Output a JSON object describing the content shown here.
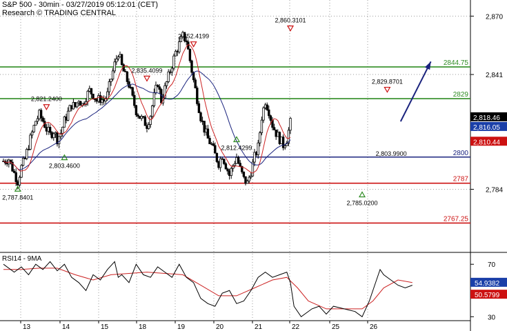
{
  "header": {
    "title": "S&P 500 - 30min - 03/27/2019 05:12:01 (CET)",
    "subtitle": "Research © TRADING CENTRAL"
  },
  "colors": {
    "up_candle": "#ffffff",
    "down_candle": "#000000",
    "green_line": "#2e8b22",
    "blue_line": "#1a237e",
    "red_line": "#cc1111",
    "ma_fast": "#cc2222",
    "ma_slow": "#1a237e",
    "arrow": "#1a237e"
  },
  "chart_data": [
    {
      "type": "candlestick",
      "title": "S&P 500 - 30min",
      "ylim": [
        2753,
        2878
      ],
      "y_ticks": [
        "2,870",
        "2,841",
        "2,784"
      ],
      "x_tick_labels": [
        "13",
        "14",
        "15",
        "18",
        "19",
        "20",
        "21",
        "22",
        "25",
        "26"
      ],
      "close_path": [
        [
          0,
          2798
        ],
        [
          3,
          2799
        ],
        [
          6,
          2792
        ],
        [
          8,
          2788
        ],
        [
          10,
          2795
        ],
        [
          12,
          2799
        ],
        [
          14,
          2806
        ],
        [
          16,
          2812
        ],
        [
          18,
          2818
        ],
        [
          20,
          2821
        ],
        [
          22,
          2818
        ],
        [
          24,
          2814
        ],
        [
          26,
          2811
        ],
        [
          28,
          2813
        ],
        [
          30,
          2809
        ],
        [
          32,
          2812
        ],
        [
          34,
          2818
        ],
        [
          36,
          2822
        ],
        [
          38,
          2826
        ],
        [
          40,
          2825
        ],
        [
          42,
          2829
        ],
        [
          44,
          2826
        ],
        [
          46,
          2830
        ],
        [
          48,
          2833
        ],
        [
          50,
          2831
        ],
        [
          52,
          2828
        ],
        [
          54,
          2829
        ],
        [
          56,
          2828
        ],
        [
          58,
          2831
        ],
        [
          60,
          2839
        ],
        [
          62,
          2846
        ],
        [
          64,
          2852
        ],
        [
          66,
          2845
        ],
        [
          68,
          2840
        ],
        [
          70,
          2836
        ],
        [
          72,
          2829
        ],
        [
          74,
          2823
        ],
        [
          76,
          2820
        ],
        [
          78,
          2818
        ],
        [
          80,
          2816
        ],
        [
          82,
          2821
        ],
        [
          84,
          2830
        ],
        [
          86,
          2837
        ],
        [
          88,
          2828
        ],
        [
          90,
          2834
        ],
        [
          92,
          2840
        ],
        [
          94,
          2846
        ],
        [
          96,
          2852
        ],
        [
          98,
          2856
        ],
        [
          100,
          2860
        ],
        [
          102,
          2858
        ],
        [
          104,
          2848
        ],
        [
          106,
          2838
        ],
        [
          108,
          2829
        ],
        [
          110,
          2820
        ],
        [
          112,
          2814
        ],
        [
          114,
          2809
        ],
        [
          116,
          2806
        ],
        [
          118,
          2801
        ],
        [
          120,
          2797
        ],
        [
          122,
          2801
        ],
        [
          124,
          2796
        ],
        [
          126,
          2791
        ],
        [
          128,
          2796
        ],
        [
          130,
          2800
        ],
        [
          132,
          2794
        ],
        [
          134,
          2789
        ],
        [
          136,
          2787
        ],
        [
          138,
          2793
        ],
        [
          140,
          2800
        ],
        [
          142,
          2805
        ],
        [
          144,
          2820
        ],
        [
          146,
          2828
        ],
        [
          148,
          2823
        ],
        [
          150,
          2816
        ],
        [
          152,
          2812
        ],
        [
          154,
          2809
        ],
        [
          156,
          2806
        ],
        [
          158,
          2809
        ],
        [
          160,
          2817
        ]
      ],
      "ma_fast_label": "",
      "ma_slow_label": "",
      "levels": [
        {
          "label": "2844.75",
          "value": 2844.75,
          "color": "green"
        },
        {
          "label": "2829",
          "value": 2829,
          "color": "green"
        },
        {
          "label": "2800",
          "value": 2800,
          "color": "blue"
        },
        {
          "label": "2787",
          "value": 2787,
          "color": "red"
        },
        {
          "label": "2767.25",
          "value": 2767.25,
          "color": "red"
        }
      ],
      "price_tags": [
        {
          "label": "2,818.46",
          "value": 2818.46,
          "style": "black"
        },
        {
          "label": "2,816.05",
          "value": 2816.05,
          "style": "blue"
        },
        {
          "label": "2,810.44",
          "value": 2810.44,
          "style": "red"
        }
      ],
      "annotations": [
        {
          "label": "2,787.8401",
          "x": 8,
          "value": 2787.8401,
          "marker": "up"
        },
        {
          "label": "2,821.2400",
          "x": 24,
          "value": 2821.24,
          "marker": "down"
        },
        {
          "label": "2,803.4600",
          "x": 34,
          "value": 2803.46,
          "marker": "up"
        },
        {
          "label": "2,835.4099",
          "x": 80,
          "value": 2835.4099,
          "marker": "down"
        },
        {
          "label": "2,852.4199",
          "x": 106,
          "value": 2852.4199,
          "marker": "down"
        },
        {
          "label": "2,812.4299",
          "x": 130,
          "value": 2812.4299,
          "marker": "up"
        },
        {
          "label": "2,860.3101",
          "x": 160,
          "value": 2860.3101,
          "marker": "down"
        },
        {
          "label": "2,785.0200",
          "x": 200,
          "value": 2785.02,
          "marker": "up"
        },
        {
          "label": "2,803.9900",
          "x": 206,
          "value": 2803.99,
          "marker": "none"
        },
        {
          "label": "2,829.8701",
          "x": 214,
          "value": 2829.8701,
          "marker": "down"
        }
      ],
      "forecast_arrow": {
        "from": {
          "x": 233,
          "value": 2817
        },
        "to": {
          "x": 246,
          "value": 2844
        }
      }
    },
    {
      "type": "line",
      "title": "RSI14 - 9MA",
      "ylim": [
        27,
        78
      ],
      "y_ticks": [
        "70",
        "30"
      ],
      "rsi_path": [
        [
          0,
          70
        ],
        [
          6,
          64
        ],
        [
          10,
          68
        ],
        [
          14,
          62
        ],
        [
          18,
          70
        ],
        [
          22,
          66
        ],
        [
          26,
          72
        ],
        [
          30,
          65
        ],
        [
          34,
          70
        ],
        [
          38,
          60
        ],
        [
          42,
          56
        ],
        [
          46,
          50
        ],
        [
          50,
          62
        ],
        [
          54,
          58
        ],
        [
          58,
          66
        ],
        [
          62,
          72
        ],
        [
          64,
          60
        ],
        [
          66,
          62
        ],
        [
          70,
          56
        ],
        [
          74,
          70
        ],
        [
          78,
          62
        ],
        [
          82,
          60
        ],
        [
          86,
          68
        ],
        [
          90,
          64
        ],
        [
          94,
          60
        ],
        [
          98,
          70
        ],
        [
          102,
          60
        ],
        [
          106,
          56
        ],
        [
          110,
          44
        ],
        [
          114,
          40
        ],
        [
          118,
          38
        ],
        [
          122,
          48
        ],
        [
          126,
          50
        ],
        [
          130,
          40
        ],
        [
          134,
          42
        ],
        [
          138,
          50
        ],
        [
          142,
          60
        ],
        [
          146,
          64
        ],
        [
          150,
          60
        ],
        [
          154,
          62
        ],
        [
          158,
          64
        ],
        [
          160,
          56
        ],
        [
          162,
          38
        ],
        [
          166,
          30
        ],
        [
          172,
          36
        ],
        [
          176,
          38
        ],
        [
          180,
          32
        ],
        [
          184,
          38
        ],
        [
          190,
          36
        ],
        [
          196,
          34
        ],
        [
          200,
          30
        ],
        [
          204,
          42
        ],
        [
          208,
          58
        ],
        [
          210,
          66
        ],
        [
          212,
          62
        ],
        [
          216,
          58
        ],
        [
          220,
          54
        ],
        [
          224,
          52
        ],
        [
          228,
          54
        ]
      ],
      "rsi_ma_path": [
        [
          0,
          66
        ],
        [
          10,
          66
        ],
        [
          20,
          67
        ],
        [
          30,
          67
        ],
        [
          40,
          62
        ],
        [
          50,
          58
        ],
        [
          60,
          62
        ],
        [
          70,
          63
        ],
        [
          80,
          64
        ],
        [
          90,
          63
        ],
        [
          100,
          62
        ],
        [
          110,
          54
        ],
        [
          120,
          46
        ],
        [
          130,
          46
        ],
        [
          140,
          52
        ],
        [
          150,
          58
        ],
        [
          158,
          60
        ],
        [
          164,
          52
        ],
        [
          170,
          42
        ],
        [
          180,
          36
        ],
        [
          190,
          36
        ],
        [
          200,
          36
        ],
        [
          206,
          42
        ],
        [
          212,
          52
        ],
        [
          220,
          58
        ],
        [
          228,
          56
        ]
      ],
      "value_tags": [
        {
          "label": "54.9382",
          "value": 54.9382,
          "style": "blue"
        },
        {
          "label": "50.5799",
          "value": 50.5799,
          "style": "red"
        }
      ]
    }
  ]
}
